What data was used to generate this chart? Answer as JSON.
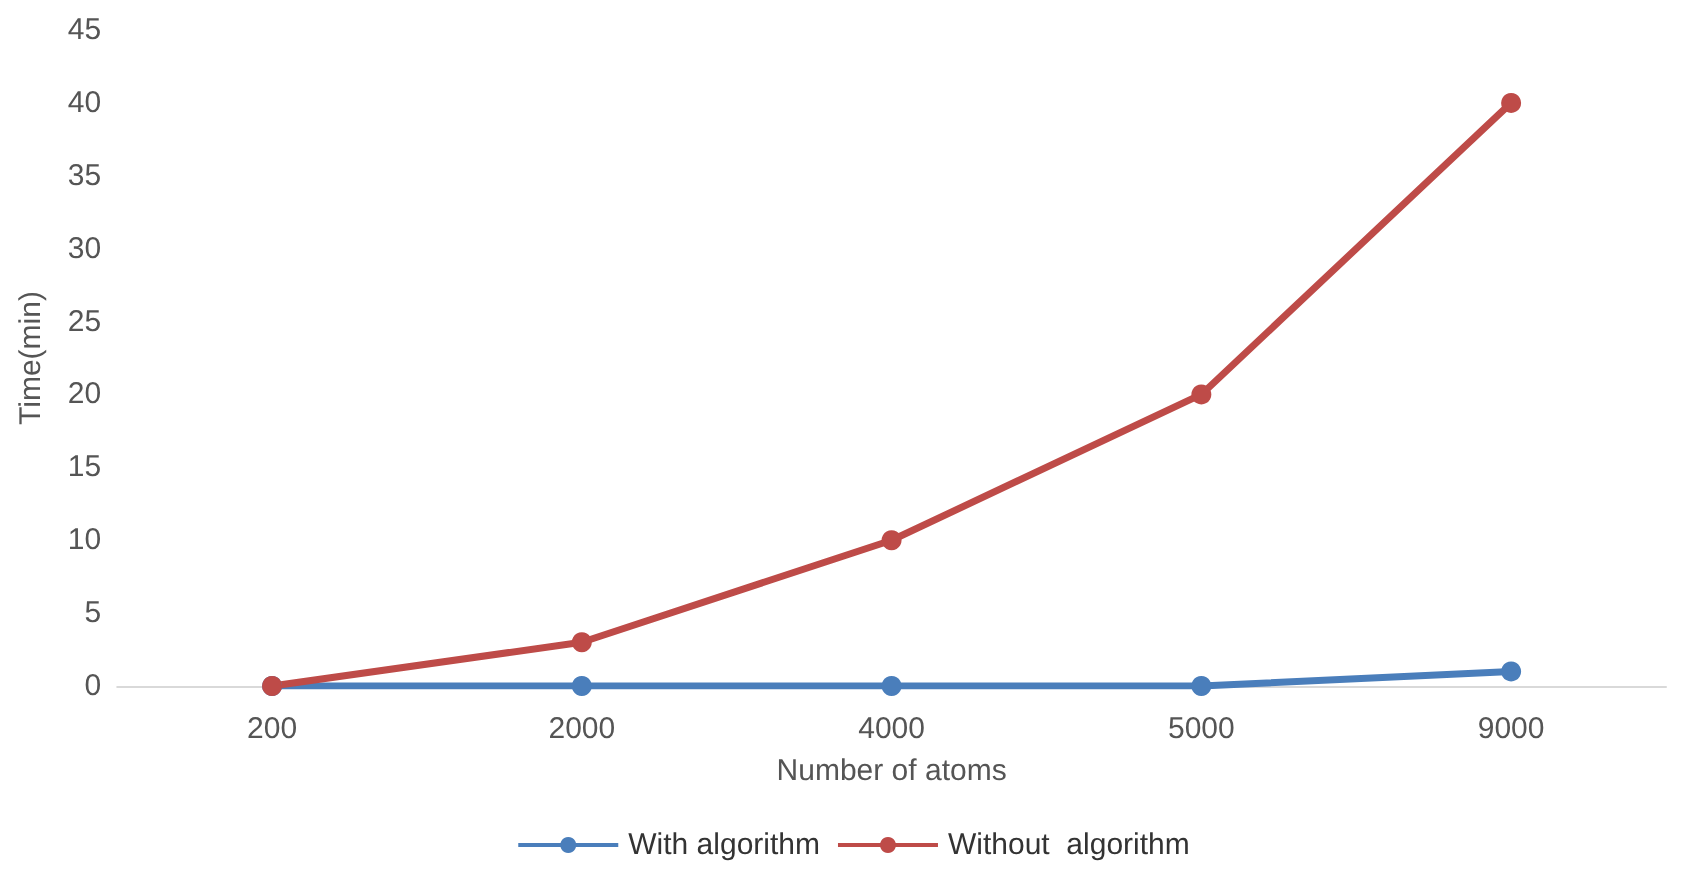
{
  "chart_data": {
    "type": "line",
    "xlabel": "Number of atoms",
    "ylabel": "Time(min)",
    "categories": [
      "200",
      "2000",
      "4000",
      "5000",
      "9000"
    ],
    "series": [
      {
        "name": "With algorithm",
        "color": "#4a7ebb",
        "values": [
          0,
          0,
          0,
          0,
          1
        ]
      },
      {
        "name": "Without  algorithm",
        "color": "#be4b48",
        "values": [
          0,
          3,
          10,
          20,
          40
        ]
      }
    ],
    "ylim": [
      0,
      45
    ],
    "yticks": [
      0,
      5,
      10,
      15,
      20,
      25,
      30,
      35,
      40,
      45
    ],
    "grid": false,
    "legend": "bottom",
    "marker": "circle",
    "line_style": "solid"
  }
}
